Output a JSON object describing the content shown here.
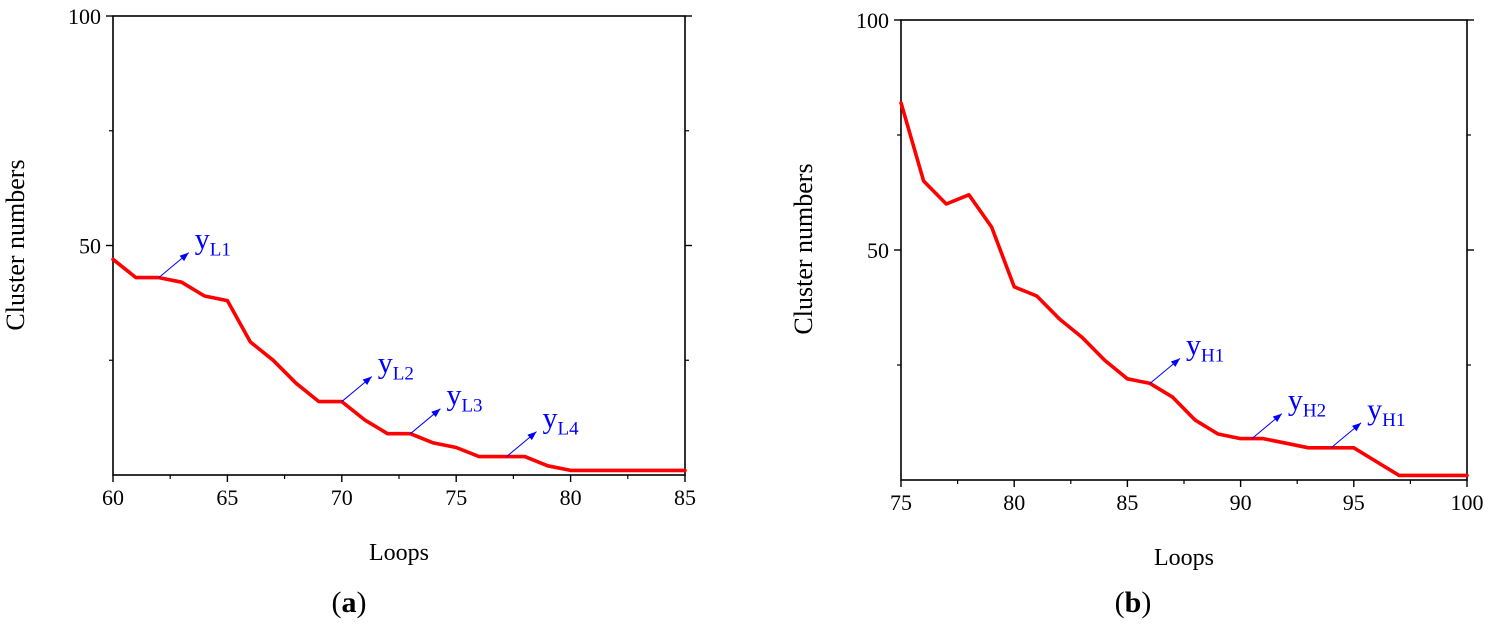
{
  "chart_data": [
    {
      "type": "line",
      "panel_label": "a",
      "xlabel": "Loops",
      "ylabel": "Cluster numbers",
      "xlim": [
        60,
        85
      ],
      "ylim": [
        0,
        100
      ],
      "xticks": [
        60,
        65,
        70,
        75,
        80,
        85
      ],
      "yticks": [
        50,
        100
      ],
      "grid": false,
      "line_color": "#ff0000",
      "annotation_color": "#0000ff",
      "series": [
        {
          "x": [
            60,
            61,
            62,
            63,
            64,
            65,
            66,
            67,
            68,
            69,
            70,
            71,
            72,
            73,
            74,
            75,
            76,
            77,
            78,
            79,
            80,
            81,
            82,
            83,
            84,
            85
          ],
          "values": [
            47,
            43,
            43,
            42,
            39,
            38,
            29,
            25,
            20,
            16,
            16,
            12,
            9,
            9,
            7,
            6,
            4,
            4,
            4,
            2,
            1,
            1,
            1,
            1,
            1,
            1
          ]
        }
      ],
      "annotations": [
        {
          "base": "y",
          "sub": "L1",
          "x": 62,
          "y": 43
        },
        {
          "base": "y",
          "sub": "L2",
          "x": 70,
          "y": 16
        },
        {
          "base": "y",
          "sub": "L3",
          "x": 73,
          "y": 9
        },
        {
          "base": "y",
          "sub": "L4",
          "x": 77.2,
          "y": 4
        }
      ]
    },
    {
      "type": "line",
      "panel_label": "b",
      "xlabel": "Loops",
      "ylabel": "Cluster numbers",
      "xlim": [
        75,
        100
      ],
      "ylim": [
        0,
        100
      ],
      "xticks": [
        75,
        80,
        85,
        90,
        95,
        100
      ],
      "yticks": [
        50,
        100
      ],
      "grid": false,
      "line_color": "#ff0000",
      "annotation_color": "#0000ff",
      "series": [
        {
          "x": [
            75,
            76,
            77,
            78,
            79,
            80,
            81,
            82,
            83,
            84,
            85,
            86,
            87,
            88,
            89,
            90,
            91,
            92,
            93,
            94,
            95,
            96,
            97,
            98,
            99,
            100
          ],
          "values": [
            82,
            65,
            60,
            62,
            55,
            42,
            40,
            35,
            31,
            26,
            22,
            21,
            18,
            13,
            10,
            9,
            9,
            8,
            7,
            7,
            7,
            4,
            1,
            1,
            1,
            1
          ]
        }
      ],
      "annotations": [
        {
          "base": "y",
          "sub": "H1",
          "x": 86,
          "y": 21
        },
        {
          "base": "y",
          "sub": "H2",
          "x": 90.5,
          "y": 9
        },
        {
          "base": "y",
          "sub": "H1",
          "x": 94,
          "y": 7
        }
      ]
    }
  ]
}
